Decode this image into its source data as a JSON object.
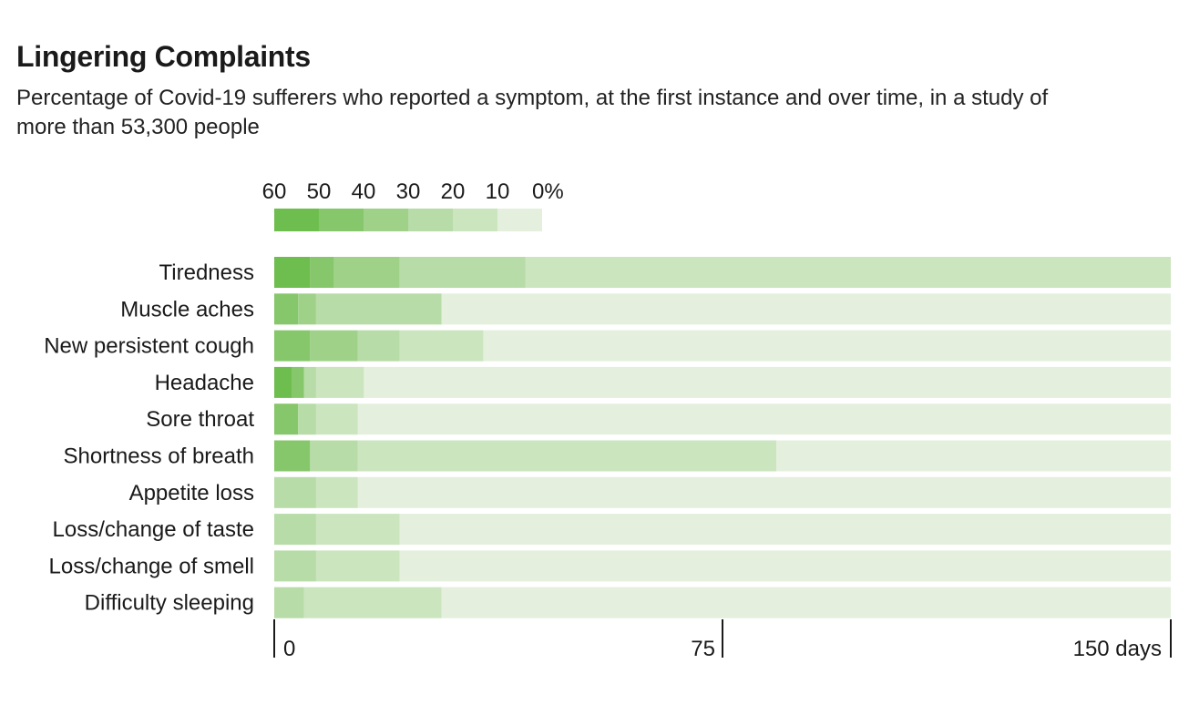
{
  "title": "Lingering Complaints",
  "subtitle": "Percentage of Covid-19 sufferers who reported a symptom, at the first instance and over time, in a study of more than 53,300 people",
  "chart_data": {
    "type": "heatmap",
    "title": "Lingering Complaints",
    "subtitle": "Percentage of Covid-19 sufferers who reported a symptom, at the first instance and over time, in a study of more than 53,300 people",
    "xlabel": "days",
    "xlim": [
      0,
      150
    ],
    "x_ticks": [
      {
        "value": 0,
        "label": "0"
      },
      {
        "value": 75,
        "label": "75"
      },
      {
        "value": 150,
        "label": "150 days"
      }
    ],
    "legend": {
      "labels": [
        "60",
        "50",
        "40",
        "30",
        "20",
        "10",
        "0%"
      ],
      "bins": [
        {
          "min": 50,
          "max": 60,
          "color": "#6ebe4f"
        },
        {
          "min": 40,
          "max": 50,
          "color": "#86c76b"
        },
        {
          "min": 30,
          "max": 40,
          "color": "#9fd189"
        },
        {
          "min": 20,
          "max": 30,
          "color": "#b7dca7"
        },
        {
          "min": 10,
          "max": 20,
          "color": "#cbe5bf"
        },
        {
          "min": 0,
          "max": 10,
          "color": "#e4f0dd"
        }
      ]
    },
    "series": [
      {
        "name": "Tiredness",
        "segments": [
          [
            0,
            6,
            "50-60"
          ],
          [
            6,
            10,
            "40-50"
          ],
          [
            10,
            21,
            "30-40"
          ],
          [
            21,
            42,
            "20-30"
          ],
          [
            42,
            150,
            "10-20"
          ]
        ]
      },
      {
        "name": "Muscle aches",
        "segments": [
          [
            0,
            4,
            "40-50"
          ],
          [
            4,
            7,
            "30-40"
          ],
          [
            7,
            28,
            "20-30"
          ],
          [
            28,
            150,
            "0-10"
          ]
        ]
      },
      {
        "name": "New persistent cough",
        "segments": [
          [
            0,
            6,
            "40-50"
          ],
          [
            6,
            14,
            "30-40"
          ],
          [
            14,
            21,
            "20-30"
          ],
          [
            21,
            35,
            "10-20"
          ],
          [
            35,
            150,
            "0-10"
          ]
        ]
      },
      {
        "name": "Headache",
        "segments": [
          [
            0,
            3,
            "50-60"
          ],
          [
            3,
            5,
            "40-50"
          ],
          [
            5,
            7,
            "20-30"
          ],
          [
            7,
            15,
            "10-20"
          ],
          [
            15,
            150,
            "0-10"
          ]
        ]
      },
      {
        "name": "Sore throat",
        "segments": [
          [
            0,
            4,
            "40-50"
          ],
          [
            4,
            7,
            "20-30"
          ],
          [
            7,
            14,
            "10-20"
          ],
          [
            14,
            150,
            "0-10"
          ]
        ]
      },
      {
        "name": "Shortness of breath",
        "segments": [
          [
            0,
            6,
            "40-50"
          ],
          [
            6,
            14,
            "20-30"
          ],
          [
            14,
            84,
            "10-20"
          ],
          [
            84,
            150,
            "0-10"
          ]
        ]
      },
      {
        "name": "Appetite loss",
        "segments": [
          [
            0,
            7,
            "20-30"
          ],
          [
            7,
            14,
            "10-20"
          ],
          [
            14,
            150,
            "0-10"
          ]
        ]
      },
      {
        "name": "Loss/change of taste",
        "segments": [
          [
            0,
            7,
            "20-30"
          ],
          [
            7,
            21,
            "10-20"
          ],
          [
            21,
            150,
            "0-10"
          ]
        ]
      },
      {
        "name": "Loss/change of smell",
        "segments": [
          [
            0,
            7,
            "20-30"
          ],
          [
            7,
            21,
            "10-20"
          ],
          [
            21,
            150,
            "0-10"
          ]
        ]
      },
      {
        "name": "Difficulty sleeping",
        "segments": [
          [
            0,
            5,
            "20-30"
          ],
          [
            5,
            28,
            "10-20"
          ],
          [
            28,
            150,
            "0-10"
          ]
        ]
      }
    ]
  }
}
